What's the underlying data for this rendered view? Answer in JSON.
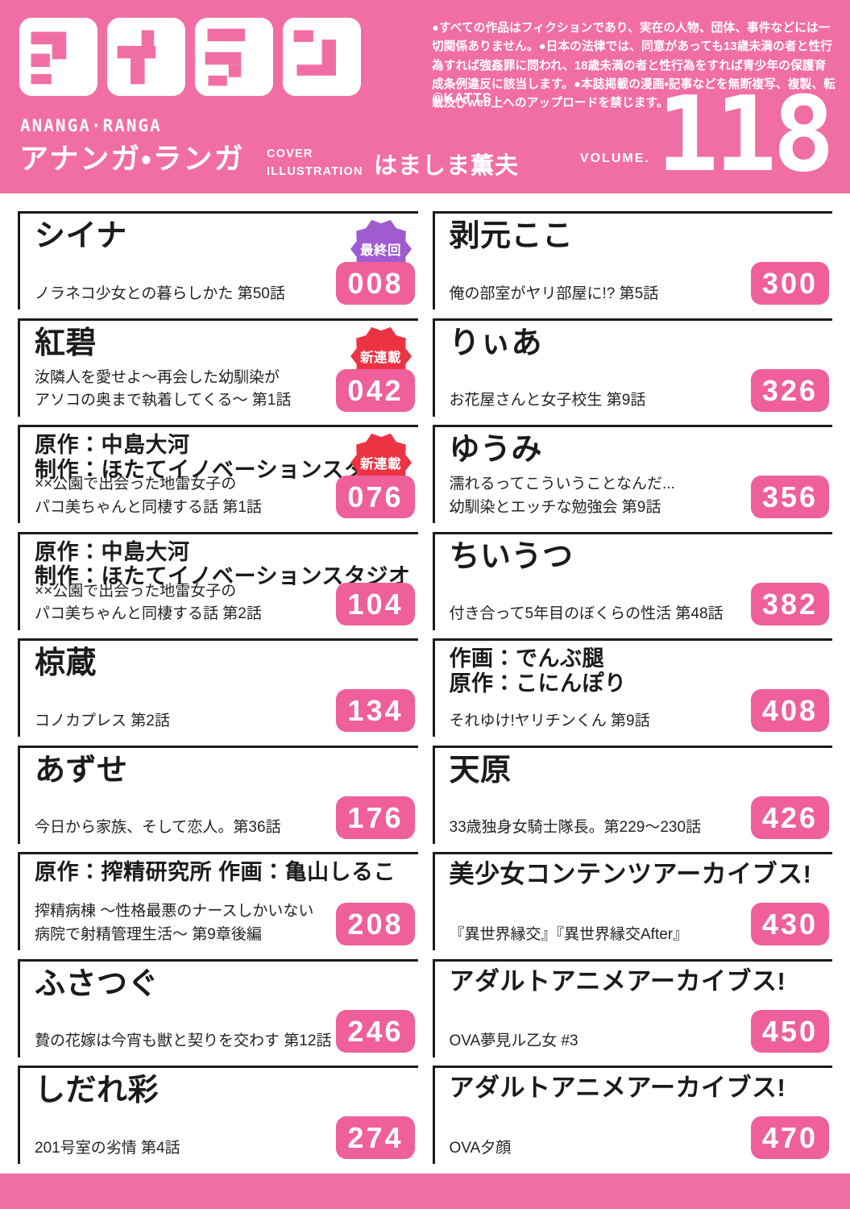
{
  "colors": {
    "pink": "#F06EA4",
    "chip_pink": "#EF5F9C",
    "badge_purple": "#A05BD0",
    "badge_red": "#EC3343",
    "ink": "#1B1B1B"
  },
  "header": {
    "logo_text": "アナラン",
    "disclaimer": "●すべての作品はフィクションであり、実在の人物、団体、事件などには一切関係ありません。●日本の法律では、同意があっても13歳未満の者と性行為すれば強姦罪に問われ、18歳未満の者と性行為をすれば青少年の保護育成条例違反に該当します。●本誌掲載の漫画・記事などを無断複写、複製、転載及びweb上へのアップロードを禁じます。",
    "copyright": "©KATTS",
    "romaji": "ANANGA·RANGA",
    "katakana_title": "アナンガ・ランガ",
    "cover_label_line1": "COVER",
    "cover_label_line2": "ILLUSTRATION",
    "cover_artist": "はましま薫夫",
    "volume_label": "VOLUME.",
    "volume_number": "118"
  },
  "badges": {
    "final": {
      "text": "最終回",
      "color": "purple"
    },
    "new_serial": {
      "text": "新連載",
      "color": "red"
    }
  },
  "toc": {
    "left": [
      {
        "title_lines": [
          "シイナ"
        ],
        "subtitle_lines": [
          "ノラネコ少女との暮らしかた 第50話"
        ],
        "page": "008",
        "badge": {
          "text": "最終回",
          "color": "purple"
        }
      },
      {
        "title_lines": [
          "紅碧"
        ],
        "subtitle_lines": [
          "汝隣人を愛せよ～再会した幼馴染が",
          "アソコの奥まで執着してくる～ 第1話"
        ],
        "page": "042",
        "badge": {
          "text": "新連載",
          "color": "red"
        }
      },
      {
        "title_lines": [
          "原作：中島大河",
          "制作：ほたてイノベーションスタジオ"
        ],
        "subtitle_lines": [
          "××公園で出会った地雷女子の",
          "パコ美ちゃんと同棲する話 第1話"
        ],
        "page": "076",
        "badge": {
          "text": "新連載",
          "color": "red"
        }
      },
      {
        "title_lines": [
          "原作：中島大河",
          "制作：ほたてイノベーションスタジオ"
        ],
        "subtitle_lines": [
          "××公園で出会った地雷女子の",
          "パコ美ちゃんと同棲する話 第2話"
        ],
        "page": "104",
        "badge": null
      },
      {
        "title_lines": [
          "椋蔵"
        ],
        "subtitle_lines": [
          "コノカプレス 第2話"
        ],
        "page": "134",
        "badge": null
      },
      {
        "title_lines": [
          "あずせ"
        ],
        "subtitle_lines": [
          "今日から家族、そして恋人。第36話"
        ],
        "page": "176",
        "badge": null
      },
      {
        "title_lines": [
          "原作：搾精研究所 作画：亀山しるこ"
        ],
        "subtitle_lines": [
          "搾精病棟 ～性格最悪のナースしかいない",
          "病院で射精管理生活～ 第9章後編"
        ],
        "page": "208",
        "badge": null
      },
      {
        "title_lines": [
          "ふさつぐ"
        ],
        "subtitle_lines": [
          "贄の花嫁は今宵も獣と契りを交わす 第12話"
        ],
        "page": "246",
        "badge": null
      },
      {
        "title_lines": [
          "しだれ彩"
        ],
        "subtitle_lines": [
          "201号室の劣情 第4話"
        ],
        "page": "274",
        "badge": null
      }
    ],
    "right": [
      {
        "title_lines": [
          "剥元ここ"
        ],
        "subtitle_lines": [
          "俺の部室がヤリ部屋に!? 第5話"
        ],
        "page": "300",
        "badge": null
      },
      {
        "title_lines": [
          "りぃあ"
        ],
        "subtitle_lines": [
          "お花屋さんと女子校生 第9話"
        ],
        "page": "326",
        "badge": null
      },
      {
        "title_lines": [
          "ゆうみ"
        ],
        "subtitle_lines": [
          "濡れるってこういうことなんだ...",
          "幼馴染とエッチな勉強会 第9話"
        ],
        "page": "356",
        "badge": null
      },
      {
        "title_lines": [
          "ちいうつ"
        ],
        "subtitle_lines": [
          "付き合って5年目のぼくらの性活 第48話"
        ],
        "page": "382",
        "badge": null
      },
      {
        "title_lines": [
          "作画：でんぶ腿",
          "原作：こにんぽり"
        ],
        "subtitle_lines": [
          "それゆけ!ヤリチンくん 第9話"
        ],
        "page": "408",
        "badge": null
      },
      {
        "title_lines": [
          "天原"
        ],
        "subtitle_lines": [
          "33歳独身女騎士隊長。第229～230話"
        ],
        "page": "426",
        "badge": null
      },
      {
        "title_lines": [
          "美少女コンテンツアーカイブス!"
        ],
        "subtitle_lines": [
          "『異世界縁交』『異世界縁交After』"
        ],
        "page": "430",
        "badge": null
      },
      {
        "title_lines": [
          "アダルトアニメアーカイブス!"
        ],
        "subtitle_lines": [
          "OVA夢見ル乙女 #3"
        ],
        "page": "450",
        "badge": null
      },
      {
        "title_lines": [
          "アダルトアニメアーカイブス!"
        ],
        "subtitle_lines": [
          "OVA夕顔"
        ],
        "page": "470",
        "badge": null
      }
    ]
  }
}
